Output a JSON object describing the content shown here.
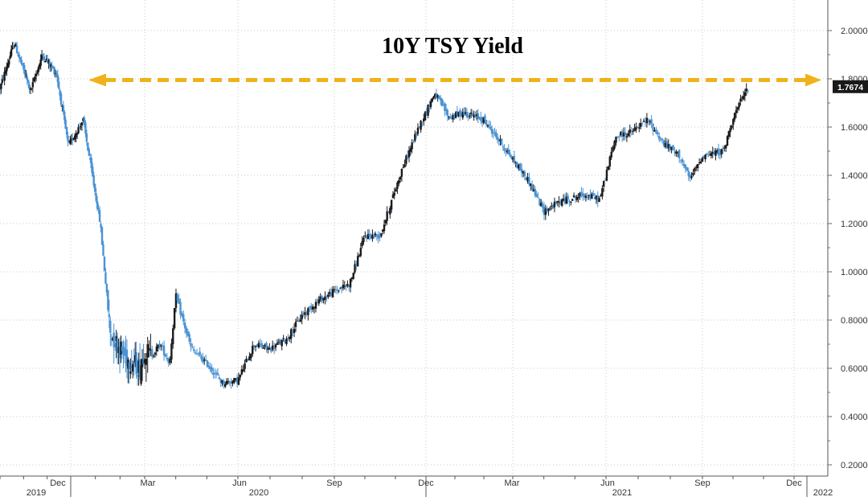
{
  "chart_data": {
    "type": "candlestick",
    "title": "10Y TSY Yield",
    "ylim": [
      0.17,
      2.12
    ],
    "y_ticks": [
      "2.0000",
      "1.8000",
      "1.6000",
      "1.4000",
      "1.2000",
      "1.0000",
      "0.8000",
      "0.6000",
      "0.4000",
      "0.2000"
    ],
    "x_month_labels": [
      "Dec",
      "Mar",
      "Jun",
      "Sep",
      "Dec",
      "Mar",
      "Jun",
      "Sep",
      "Dec"
    ],
    "x_year_labels": [
      "2019",
      "2020",
      "2021",
      "2022"
    ],
    "last_value_label": "1.7674",
    "last_value": 1.7674,
    "reference_level": 1.795,
    "grid": true,
    "grid_style": "dotted",
    "series": [
      {
        "anchors_time": [
          0,
          0.6,
          1.3,
          1.8,
          2.4,
          2.9,
          3.5,
          4.2,
          4.6,
          5.2,
          5.8,
          6.0,
          6.2,
          6.5,
          6.8,
          7.0,
          7.5,
          8.0,
          8.5,
          9.0,
          9.5,
          10.0,
          10.5,
          11.0,
          11.5,
          12.0,
          12.5,
          13.0,
          13.5,
          14.2,
          14.8,
          15.3,
          15.8,
          16.3,
          17.0,
          17.8,
          18.5,
          19.0,
          19.5,
          20.3,
          20.8,
          21.3,
          21.8,
          22.3,
          22.8,
          23.3,
          23.6,
          24.0,
          24.7,
          25.0,
          25.5
        ],
        "anchors_value": [
          1.76,
          1.95,
          1.75,
          1.9,
          1.82,
          1.52,
          1.63,
          1.2,
          0.75,
          0.65,
          0.6,
          0.68,
          0.65,
          0.7,
          0.62,
          0.9,
          0.68,
          0.62,
          0.54,
          0.55,
          0.7,
          0.68,
          0.72,
          0.82,
          0.88,
          0.92,
          0.95,
          1.15,
          1.15,
          1.42,
          1.61,
          1.74,
          1.64,
          1.66,
          1.63,
          1.5,
          1.38,
          1.25,
          1.29,
          1.32,
          1.3,
          1.56,
          1.58,
          1.63,
          1.53,
          1.48,
          1.38,
          1.48,
          1.5,
          1.64,
          1.7674
        ],
        "color_up": "#1a1a1a",
        "color_down": "#4a93d4"
      }
    ],
    "colors": {
      "reference_line": "#f0b21a",
      "grid": "#c8c8c8",
      "axis_text": "#333333",
      "title": "#222222",
      "last_value_box": "#1a1a1a",
      "last_value_text": "#ffffff"
    }
  }
}
